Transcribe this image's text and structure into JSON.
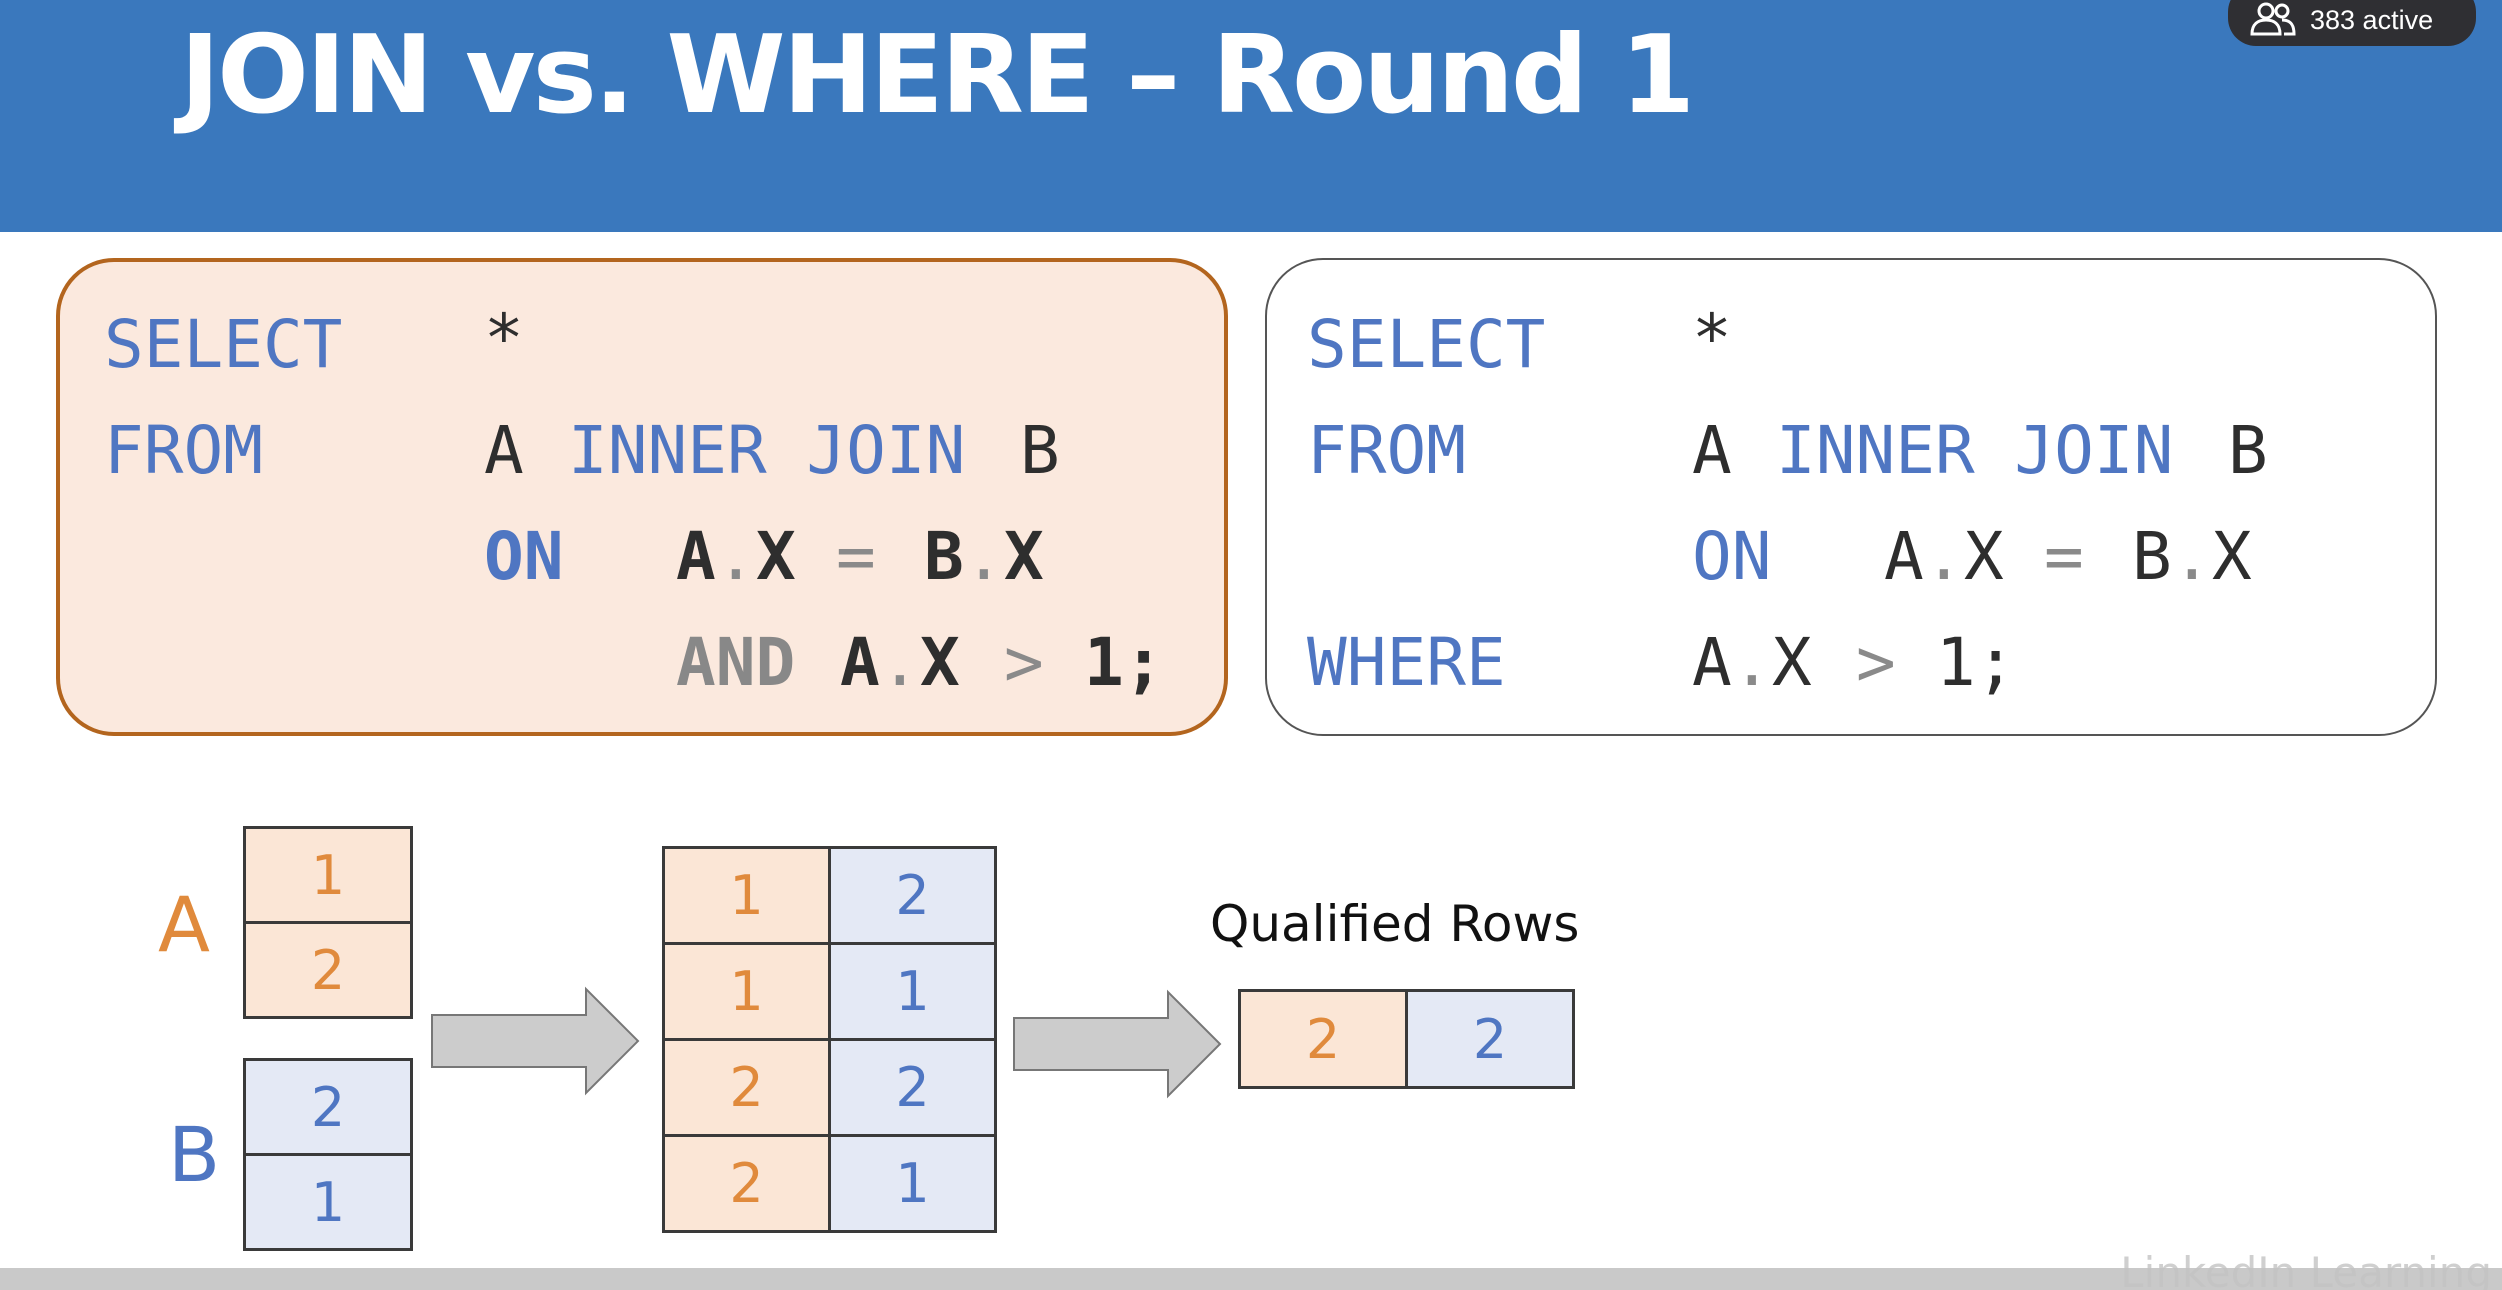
{
  "slide": {
    "title": "JOIN vs. WHERE – Round 1",
    "viewer_count": "383 active",
    "watermark": "LinkedIn Learning"
  },
  "colors": {
    "accent": "#3a78bd",
    "keyword": "#4f76c2",
    "table_a": "#e08a3c",
    "table_b": "#4f76c2"
  },
  "icons": {
    "viewers": "people-icon"
  },
  "query_join": {
    "select_kw": "SELECT",
    "select_list": "*",
    "from_kw": "FROM",
    "table_a": "A",
    "join_kw": "INNER JOIN",
    "table_b": "B",
    "on_kw": "ON",
    "cond_left": "A",
    "cond_dot_1": ".",
    "cond_col_1": "X",
    "cond_eq": "=",
    "cond_right": "B",
    "cond_dot_2": ".",
    "cond_col_2": "X",
    "and_kw": "AND",
    "filter_left": "A",
    "filter_dot": ".",
    "filter_col": "X",
    "filter_op": ">",
    "filter_value": "1;"
  },
  "query_where": {
    "select_kw": "SELECT",
    "select_list": "*",
    "from_kw": "FROM",
    "table_a": "A",
    "join_kw": "INNER JOIN",
    "table_b": "B",
    "on_kw": "ON",
    "cond_left": "A",
    "cond_dot_1": ".",
    "cond_col_1": "X",
    "cond_eq": "=",
    "cond_right": "B",
    "cond_dot_2": ".",
    "cond_col_2": "X",
    "where_kw": "WHERE",
    "filter_left": "A",
    "filter_dot": ".",
    "filter_col": "X",
    "filter_op": ">",
    "filter_value": "1;"
  },
  "diagram": {
    "table_a": {
      "label": "A",
      "values": [
        "1",
        "2"
      ]
    },
    "table_b": {
      "label": "B",
      "values": [
        "2",
        "1"
      ]
    },
    "cross_product": [
      [
        "1",
        "2"
      ],
      [
        "1",
        "1"
      ],
      [
        "2",
        "2"
      ],
      [
        "2",
        "1"
      ]
    ],
    "qualified_label": "Qualified Rows",
    "qualified_rows": [
      [
        "2",
        "2"
      ]
    ]
  }
}
